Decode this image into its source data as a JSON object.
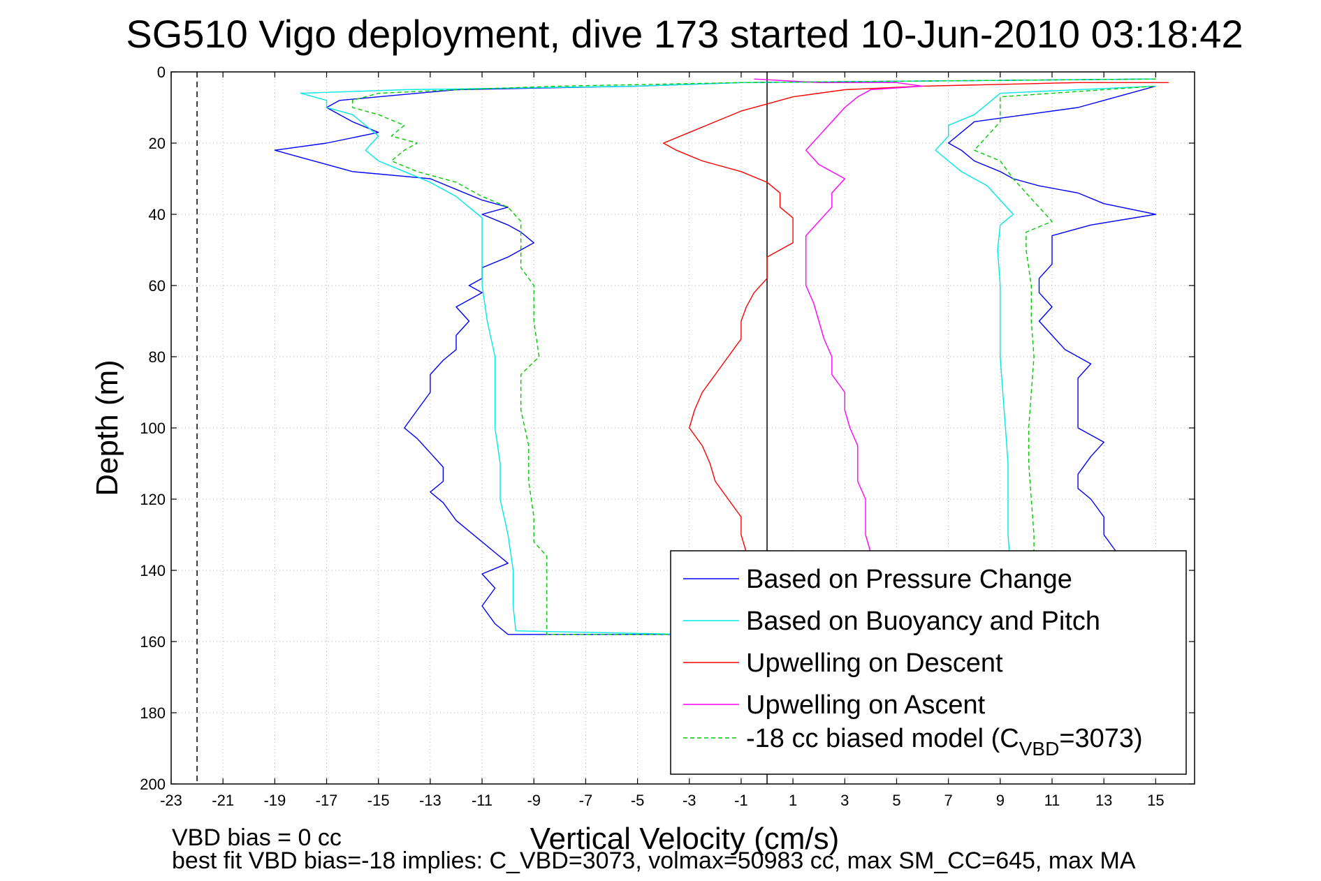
{
  "chart_data": {
    "type": "line",
    "title": "SG510 Vigo deployment, dive 173 started 10-Jun-2010 03:18:42",
    "xlabel": "Vertical Velocity (cm/s)",
    "ylabel": "Depth (m)",
    "xlim": [
      -23,
      16.5
    ],
    "ylim": [
      0,
      200
    ],
    "y_reversed": true,
    "grid": true,
    "x_ticks": [
      -23,
      -21,
      -19,
      -17,
      -15,
      -13,
      -11,
      -9,
      -7,
      -5,
      -3,
      -1,
      1,
      3,
      5,
      7,
      9,
      11,
      13,
      15
    ],
    "y_ticks": [
      0,
      20,
      40,
      60,
      80,
      100,
      120,
      140,
      160,
      180,
      200
    ],
    "x_tick_labels": [
      "-23",
      "-21",
      "-19",
      "-17",
      "-15",
      "-13",
      "-11",
      "-9",
      "-7",
      "-5",
      "-3",
      "-1",
      "1",
      "3",
      "5",
      "7",
      "9",
      "11",
      "13",
      "15"
    ],
    "y_tick_labels": [
      "0",
      "20",
      "40",
      "60",
      "80",
      "100",
      "120",
      "140",
      "160",
      "180",
      "200"
    ],
    "vertical_lines": [
      {
        "x": -22,
        "style": "dashed",
        "color": "#000000"
      },
      {
        "x": 0,
        "style": "solid",
        "color": "#000000"
      }
    ],
    "legend_location": "lower-right",
    "series": [
      {
        "name": "Based on Pressure Change",
        "color": "#0000ff",
        "dash": false,
        "points": [
          [
            15,
            2
          ],
          [
            -1,
            3
          ],
          [
            -5,
            4
          ],
          [
            -12,
            5
          ],
          [
            -15,
            7
          ],
          [
            -16.5,
            8
          ],
          [
            -17,
            10
          ],
          [
            -16.5,
            12
          ],
          [
            -16,
            14
          ],
          [
            -15,
            17
          ],
          [
            -17,
            20
          ],
          [
            -19,
            22
          ],
          [
            -18,
            24
          ],
          [
            -17,
            26
          ],
          [
            -16,
            28
          ],
          [
            -13,
            30
          ],
          [
            -12,
            33
          ],
          [
            -11,
            36
          ],
          [
            -10,
            38
          ],
          [
            -11,
            40
          ],
          [
            -10,
            43
          ],
          [
            -9.5,
            45
          ],
          [
            -9,
            48
          ],
          [
            -9.5,
            50
          ],
          [
            -10,
            52
          ],
          [
            -11,
            55
          ],
          [
            -11,
            58
          ],
          [
            -11.5,
            60
          ],
          [
            -11,
            62
          ],
          [
            -12,
            66
          ],
          [
            -11.5,
            70
          ],
          [
            -12,
            74
          ],
          [
            -12,
            78
          ],
          [
            -12.5,
            81
          ],
          [
            -13,
            85
          ],
          [
            -13,
            90
          ],
          [
            -13.5,
            95
          ],
          [
            -14,
            100
          ],
          [
            -13.5,
            103
          ],
          [
            -13,
            107
          ],
          [
            -12.5,
            111
          ],
          [
            -12.5,
            115
          ],
          [
            -13,
            118
          ],
          [
            -12.5,
            121
          ],
          [
            -12,
            126
          ],
          [
            -11,
            132
          ],
          [
            -10.5,
            135
          ],
          [
            -10,
            138
          ],
          [
            -11,
            141
          ],
          [
            -10.5,
            145
          ],
          [
            -11,
            150
          ],
          [
            -10.5,
            155
          ],
          [
            -10,
            158
          ],
          [
            -3,
            158
          ],
          [
            9,
            158
          ],
          [
            11,
            157
          ],
          [
            12,
            156
          ],
          [
            12.5,
            150
          ],
          [
            13,
            145
          ],
          [
            13,
            140
          ],
          [
            13.5,
            135
          ],
          [
            13,
            130
          ],
          [
            13,
            125
          ],
          [
            12.5,
            120
          ],
          [
            12,
            117
          ],
          [
            12,
            113
          ],
          [
            12.5,
            108
          ],
          [
            13,
            104
          ],
          [
            12,
            100
          ],
          [
            12,
            95
          ],
          [
            12,
            90
          ],
          [
            12,
            86
          ],
          [
            12.5,
            82
          ],
          [
            11.5,
            78
          ],
          [
            11,
            74
          ],
          [
            10.5,
            70
          ],
          [
            11,
            66
          ],
          [
            10.5,
            62
          ],
          [
            10.5,
            58
          ],
          [
            11,
            54
          ],
          [
            11,
            50
          ],
          [
            11,
            46
          ],
          [
            12.5,
            43
          ],
          [
            15,
            40
          ],
          [
            13,
            37
          ],
          [
            12,
            34
          ],
          [
            10.5,
            32
          ],
          [
            9.5,
            30
          ],
          [
            9,
            28
          ],
          [
            8,
            25
          ],
          [
            7.5,
            22
          ],
          [
            7,
            20
          ],
          [
            7.5,
            17
          ],
          [
            8,
            14
          ],
          [
            10,
            12
          ],
          [
            12,
            10
          ],
          [
            13,
            8
          ],
          [
            14,
            6
          ],
          [
            15,
            4
          ]
        ]
      },
      {
        "name": "Based on Buoyancy and Pitch",
        "color": "#00e8e8",
        "dash": false,
        "points": [
          [
            15,
            2
          ],
          [
            -1,
            3
          ],
          [
            -5,
            4
          ],
          [
            -14,
            5
          ],
          [
            -18,
            6
          ],
          [
            -17,
            8
          ],
          [
            -17,
            10
          ],
          [
            -16,
            12
          ],
          [
            -15.5,
            15
          ],
          [
            -15,
            18
          ],
          [
            -15.5,
            22
          ],
          [
            -15,
            25
          ],
          [
            -14,
            28
          ],
          [
            -13,
            31
          ],
          [
            -12,
            35
          ],
          [
            -11.5,
            38
          ],
          [
            -11,
            41
          ],
          [
            -11,
            45
          ],
          [
            -11,
            55
          ],
          [
            -11,
            60
          ],
          [
            -10.8,
            70
          ],
          [
            -10.5,
            80
          ],
          [
            -10.5,
            90
          ],
          [
            -10.5,
            100
          ],
          [
            -10.3,
            110
          ],
          [
            -10.3,
            120
          ],
          [
            -10,
            130
          ],
          [
            -9.8,
            140
          ],
          [
            -9.8,
            150
          ],
          [
            -9.7,
            157
          ],
          [
            -3,
            158
          ],
          [
            9,
            158
          ],
          [
            9.5,
            157
          ],
          [
            9.5,
            150
          ],
          [
            9.4,
            140
          ],
          [
            9.3,
            130
          ],
          [
            9.3,
            120
          ],
          [
            9.3,
            110
          ],
          [
            9.2,
            100
          ],
          [
            9.1,
            90
          ],
          [
            9,
            80
          ],
          [
            9,
            70
          ],
          [
            9,
            60
          ],
          [
            8.9,
            50
          ],
          [
            9,
            43
          ],
          [
            9.5,
            40
          ],
          [
            9,
            36
          ],
          [
            8.5,
            32
          ],
          [
            7.5,
            28
          ],
          [
            7,
            25
          ],
          [
            6.5,
            22
          ],
          [
            7,
            18
          ],
          [
            7,
            15
          ],
          [
            8,
            12
          ],
          [
            8.5,
            9
          ],
          [
            9,
            6
          ],
          [
            15,
            4
          ]
        ]
      },
      {
        "name": "Upwelling on Descent",
        "color": "#ff0000",
        "dash": false,
        "points": [
          [
            15.5,
            3
          ],
          [
            12,
            3
          ],
          [
            6,
            4
          ],
          [
            3,
            5
          ],
          [
            1,
            7
          ],
          [
            0,
            9
          ],
          [
            -1,
            11
          ],
          [
            -2,
            14
          ],
          [
            -3,
            17
          ],
          [
            -4,
            20
          ],
          [
            -3.5,
            22
          ],
          [
            -2.5,
            25
          ],
          [
            -1,
            28
          ],
          [
            0,
            31
          ],
          [
            0.5,
            34
          ],
          [
            0.5,
            38
          ],
          [
            1,
            41
          ],
          [
            1,
            45
          ],
          [
            1,
            48
          ],
          [
            0,
            52
          ],
          [
            0,
            55
          ],
          [
            0,
            58
          ],
          [
            -0.5,
            62
          ],
          [
            -0.8,
            66
          ],
          [
            -1,
            70
          ],
          [
            -1,
            75
          ],
          [
            -1.5,
            80
          ],
          [
            -2,
            85
          ],
          [
            -2.5,
            90
          ],
          [
            -2.8,
            95
          ],
          [
            -3,
            100
          ],
          [
            -2.5,
            105
          ],
          [
            -2.2,
            110
          ],
          [
            -2,
            115
          ],
          [
            -1.5,
            120
          ],
          [
            -1,
            125
          ],
          [
            -1,
            130
          ],
          [
            -0.8,
            135
          ]
        ]
      },
      {
        "name": "Upwelling on Ascent",
        "color": "#ff00ff",
        "dash": false,
        "points": [
          [
            -0.5,
            2
          ],
          [
            2,
            3
          ],
          [
            5,
            3
          ],
          [
            6,
            4
          ],
          [
            4,
            5
          ],
          [
            3.5,
            7
          ],
          [
            3,
            10
          ],
          [
            2.5,
            14
          ],
          [
            2,
            18
          ],
          [
            1.5,
            22
          ],
          [
            2,
            26
          ],
          [
            3,
            30
          ],
          [
            2.5,
            34
          ],
          [
            2.5,
            38
          ],
          [
            2,
            42
          ],
          [
            1.5,
            46
          ],
          [
            1.5,
            50
          ],
          [
            1.5,
            55
          ],
          [
            1.5,
            60
          ],
          [
            1.8,
            65
          ],
          [
            2,
            70
          ],
          [
            2.2,
            75
          ],
          [
            2.5,
            80
          ],
          [
            2.5,
            85
          ],
          [
            3,
            90
          ],
          [
            3,
            95
          ],
          [
            3.2,
            100
          ],
          [
            3.5,
            105
          ],
          [
            3.5,
            110
          ],
          [
            3.5,
            115
          ],
          [
            3.8,
            120
          ],
          [
            3.8,
            125
          ],
          [
            3.8,
            130
          ],
          [
            4,
            135
          ]
        ]
      },
      {
        "name": "-18 cc biased model (C_VBD=3073)",
        "color": "#00cc00",
        "dash": true,
        "points": [
          [
            15,
            2
          ],
          [
            -1,
            3
          ],
          [
            -8,
            4
          ],
          [
            -12,
            5
          ],
          [
            -15,
            6
          ],
          [
            -16,
            8
          ],
          [
            -16,
            10
          ],
          [
            -15,
            12
          ],
          [
            -14,
            15
          ],
          [
            -14.5,
            18
          ],
          [
            -13.5,
            20
          ],
          [
            -14,
            22
          ],
          [
            -14.5,
            25
          ],
          [
            -13.5,
            28
          ],
          [
            -12,
            31
          ],
          [
            -11,
            35
          ],
          [
            -10,
            38
          ],
          [
            -9.5,
            42
          ],
          [
            -9.5,
            48
          ],
          [
            -9.5,
            55
          ],
          [
            -9,
            60
          ],
          [
            -9,
            70
          ],
          [
            -8.8,
            80
          ],
          [
            -9.5,
            85
          ],
          [
            -9.5,
            95
          ],
          [
            -9.2,
            105
          ],
          [
            -9.2,
            115
          ],
          [
            -9,
            125
          ],
          [
            -9,
            132
          ],
          [
            -8.5,
            136
          ],
          [
            -8.5,
            145
          ],
          [
            -8.5,
            152
          ],
          [
            -8.5,
            158
          ],
          [
            -3,
            158
          ],
          [
            9,
            158
          ],
          [
            10.5,
            157
          ],
          [
            10.5,
            150
          ],
          [
            10.3,
            140
          ],
          [
            10.3,
            130
          ],
          [
            10.2,
            120
          ],
          [
            10.1,
            110
          ],
          [
            10.1,
            100
          ],
          [
            10.2,
            90
          ],
          [
            10.3,
            80
          ],
          [
            10.2,
            70
          ],
          [
            10.2,
            60
          ],
          [
            10,
            50
          ],
          [
            10,
            45
          ],
          [
            11,
            42
          ],
          [
            10.5,
            38
          ],
          [
            10,
            34
          ],
          [
            9.5,
            30
          ],
          [
            9,
            25
          ],
          [
            8,
            22
          ],
          [
            8.5,
            18
          ],
          [
            9,
            14
          ],
          [
            9,
            10
          ],
          [
            9,
            7
          ],
          [
            15,
            4
          ]
        ]
      }
    ],
    "legend": [
      {
        "text": "Based on Pressure Change"
      },
      {
        "text": "Based on Buoyancy and Pitch"
      },
      {
        "text": "Upwelling on Descent"
      },
      {
        "text": "Upwelling on Ascent"
      },
      {
        "text": "-18 cc biased model (C",
        "sub": "VBD",
        "suffix": "=3073)"
      }
    ],
    "annotations": [
      "VBD bias = 0 cc",
      "best fit VBD bias=-18 implies: C_VBD=3073, volmax=50983 cc, max SM_CC=645, max MA"
    ]
  }
}
